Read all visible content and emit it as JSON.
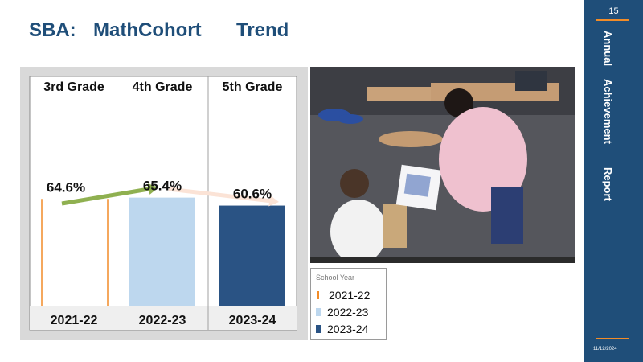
{
  "slide": {
    "title_parts": [
      "SBA:",
      "MathCohort",
      "Trend"
    ],
    "page_number": "15",
    "sidebar_words": [
      "Annual",
      "Achievement",
      "Report"
    ],
    "date": "11/12/2024"
  },
  "colors": {
    "brand": "#1f4e79",
    "accent": "#f28c28",
    "series_2021_22": "#f28c28",
    "series_2022_23": "#bdd7ee",
    "series_2023_24": "#2a5384",
    "arrow_up": "#8fb050",
    "arrow_down": "#fbe3d6"
  },
  "legend": {
    "title": "School Year",
    "items": [
      "2021-22",
      "2022-23",
      "2023-24"
    ]
  },
  "chart_data": {
    "type": "bar",
    "column_headers": [
      "3rd Grade",
      "4th Grade",
      "5th Grade"
    ],
    "categories": [
      "2021-22",
      "2022-23",
      "2023-24"
    ],
    "values": [
      64.6,
      65.4,
      60.6
    ],
    "data_labels": [
      "64.6%",
      "65.4%",
      "60.6%"
    ],
    "title": "",
    "xlabel": "",
    "ylabel": "",
    "ylim": [
      0,
      100
    ],
    "annotations": [
      {
        "type": "arrow",
        "from": "2021-22",
        "to": "2022-23",
        "direction": "up",
        "color": "green"
      },
      {
        "type": "arrow",
        "from": "2022-23",
        "to": "2023-24",
        "direction": "down",
        "color": "pink"
      }
    ]
  }
}
